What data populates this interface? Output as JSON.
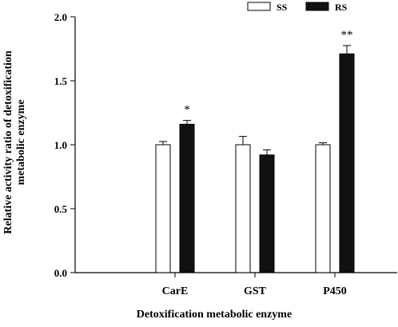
{
  "chart_data": {
    "type": "bar",
    "categories": [
      "CarE",
      "GST",
      "P450"
    ],
    "series": [
      {
        "name": "SS",
        "color": "#ffffff",
        "values": [
          1.0,
          1.0,
          1.0
        ],
        "errors": [
          0.025,
          0.065,
          0.015
        ]
      },
      {
        "name": "RS",
        "color": "#111111",
        "values": [
          1.16,
          0.92,
          1.71
        ],
        "errors": [
          0.03,
          0.04,
          0.065
        ]
      }
    ],
    "significance": [
      "*",
      "",
      "**"
    ],
    "xlabel": "Detoxification metabolic enzyme",
    "ylabel_lines": [
      "Relative activity ratio of detoxification",
      "metabolic enzyme"
    ],
    "ylim": [
      0.0,
      2.0
    ],
    "yticks": [
      "0.0",
      "0.5",
      "1.0",
      "1.5",
      "2.0"
    ],
    "legend_position": "top-right",
    "grid": false
  }
}
